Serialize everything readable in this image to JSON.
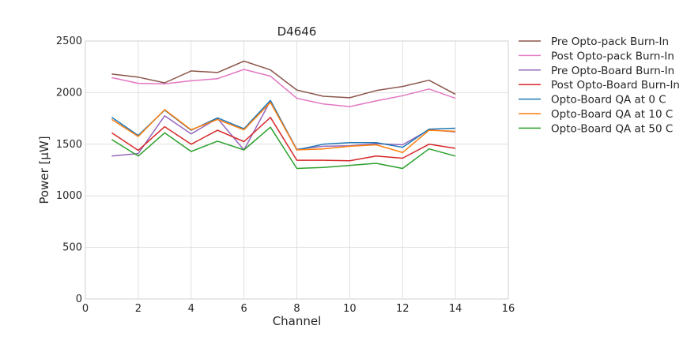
{
  "chart_data": {
    "type": "line",
    "title": "D4646",
    "xlabel": "Channel",
    "ylabel": "Power [μW]",
    "xlim": [
      0,
      16
    ],
    "ylim": [
      0,
      2500
    ],
    "xticks": [
      0,
      2,
      4,
      6,
      8,
      10,
      12,
      14,
      16
    ],
    "yticks": [
      0,
      500,
      1000,
      1500,
      2000,
      2500
    ],
    "grid": true,
    "legend_position": "outside-right-top",
    "x": [
      1,
      2,
      3,
      4,
      5,
      6,
      7,
      8,
      9,
      10,
      11,
      12,
      13,
      14
    ],
    "series": [
      {
        "name": "Pre Opto-pack Burn-In",
        "color": "#8c564b",
        "values": [
          2180,
          2150,
          2095,
          2210,
          2195,
          2305,
          2220,
          2025,
          1965,
          1950,
          2020,
          2060,
          2120,
          1985
        ]
      },
      {
        "name": "Post Opto-pack Burn-In",
        "color": "#e377c2",
        "values": [
          2145,
          2090,
          2085,
          2115,
          2135,
          2225,
          2160,
          1945,
          1890,
          1865,
          1920,
          1970,
          2035,
          1945
        ]
      },
      {
        "name": "Pre Opto-Board Burn-In",
        "color": "#9467bd",
        "values": [
          1385,
          1410,
          1775,
          1600,
          1750,
          1445,
          1920,
          1450,
          1480,
          1485,
          1505,
          1495,
          1640,
          1620
        ]
      },
      {
        "name": "Post Opto-Board Burn-In",
        "color": "#d62728",
        "values": [
          1610,
          1440,
          1670,
          1500,
          1635,
          1525,
          1760,
          1345,
          1345,
          1340,
          1385,
          1365,
          1500,
          1460
        ]
      },
      {
        "name": "Opto-Board QA at 0 C",
        "color": "#1f77b4",
        "values": [
          1760,
          1585,
          1830,
          1635,
          1755,
          1650,
          1925,
          1445,
          1500,
          1515,
          1515,
          1470,
          1645,
          1655
        ]
      },
      {
        "name": "Opto-Board QA at 10 C",
        "color": "#ff7f0e",
        "values": [
          1740,
          1575,
          1835,
          1640,
          1740,
          1640,
          1905,
          1445,
          1455,
          1480,
          1495,
          1420,
          1635,
          1625
        ]
      },
      {
        "name": "Opto-Board QA at 50 C",
        "color": "#2ca02c",
        "values": [
          1545,
          1385,
          1610,
          1430,
          1530,
          1445,
          1665,
          1265,
          1275,
          1295,
          1315,
          1265,
          1455,
          1385
        ]
      }
    ]
  }
}
